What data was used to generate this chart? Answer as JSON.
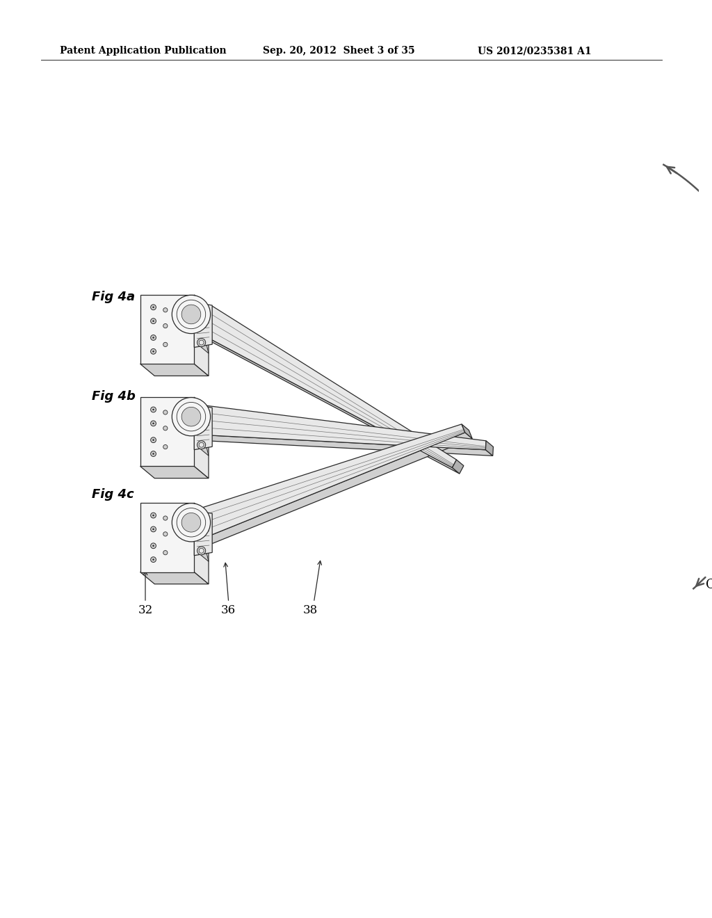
{
  "bg_color": "#ffffff",
  "header_left": "Patent Application Publication",
  "header_center": "Sep. 20, 2012  Sheet 3 of 35",
  "header_right": "US 2012/0235381 A1",
  "fig_labels": [
    "Fig 4a",
    "Fig 4b",
    "Fig 4c"
  ],
  "ref_labels": [
    "32",
    "36",
    "38"
  ],
  "ref_label_c": "C",
  "line_color": "#2a2a2a",
  "fill_light": "#e8e8e8",
  "fill_mid": "#d0d0d0",
  "fill_dark": "#b0b0b0",
  "fill_darker": "#909090",
  "fill_white": "#f5f5f5"
}
